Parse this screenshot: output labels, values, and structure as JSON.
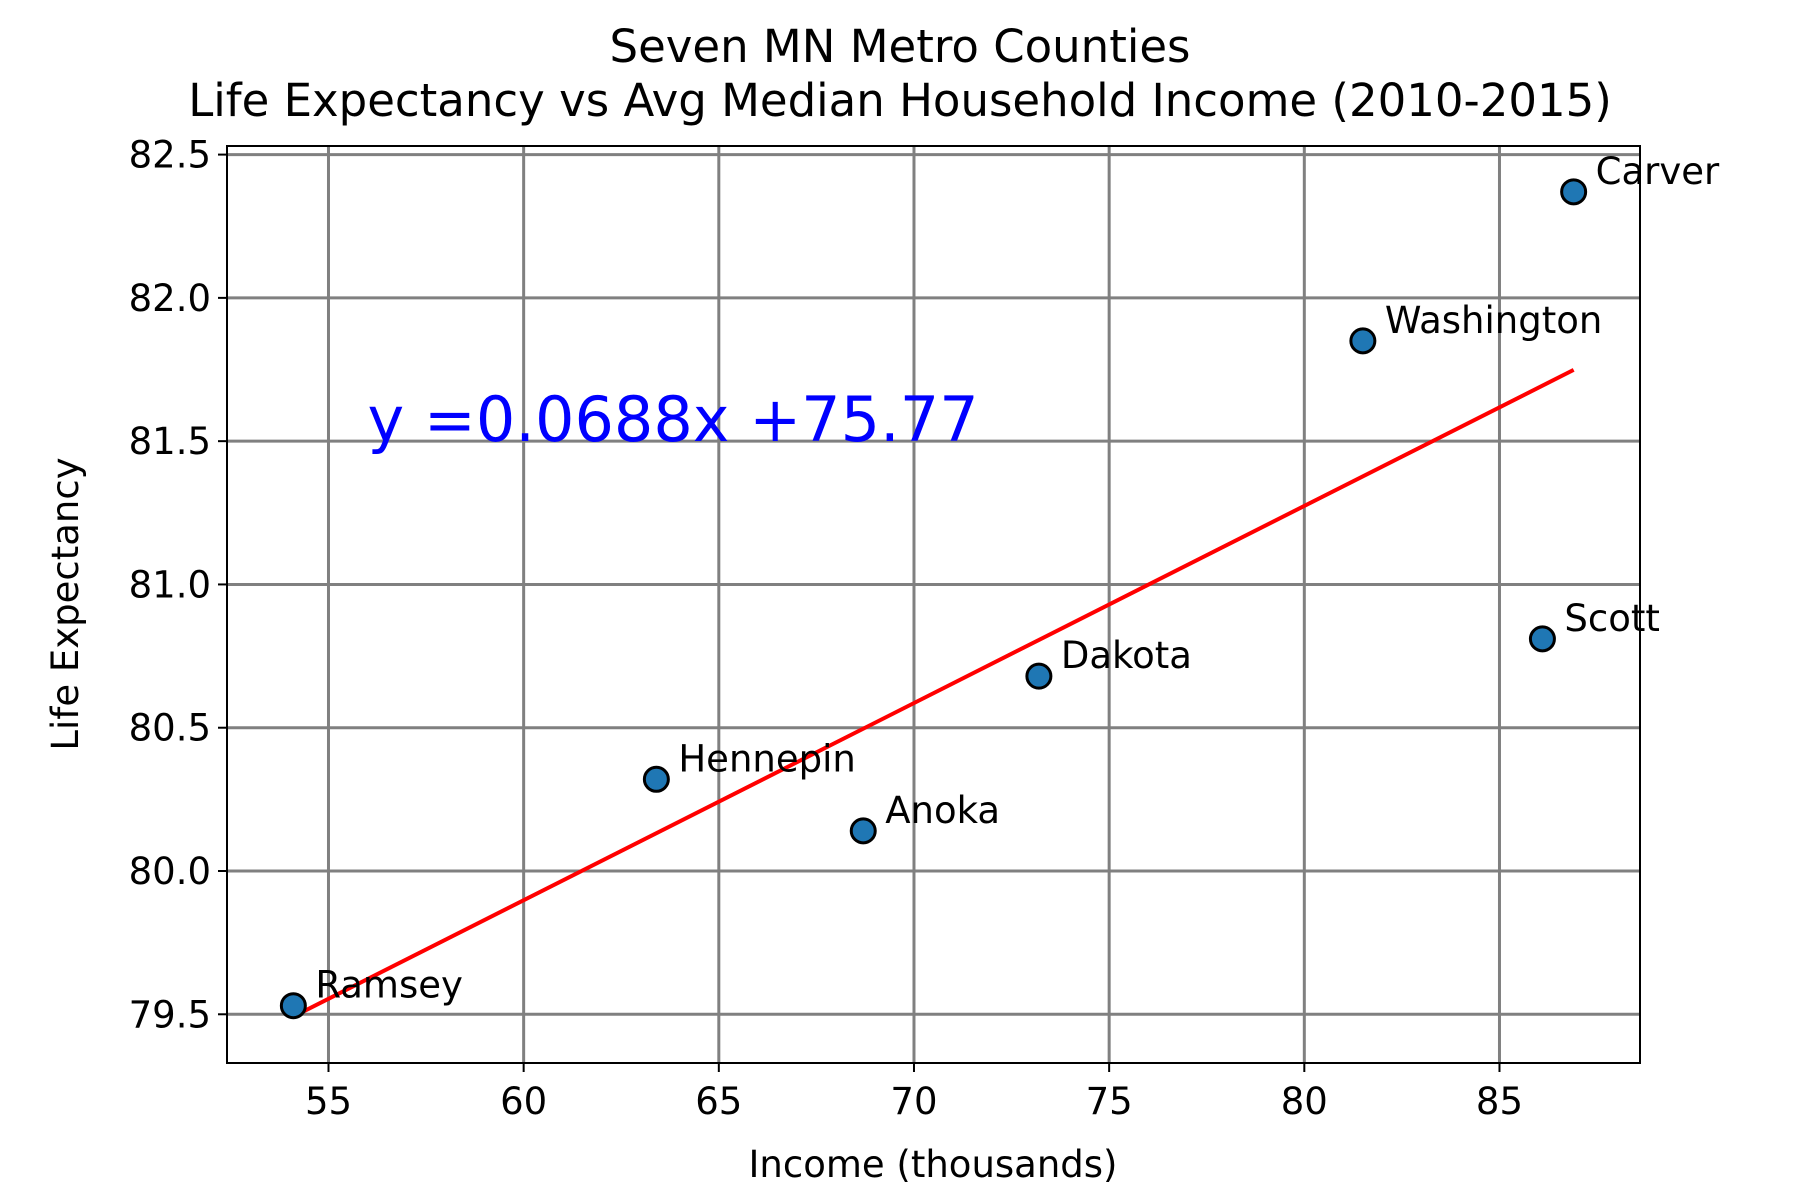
{
  "chart_data": {
    "type": "scatter",
    "title": [
      "Seven MN Metro Counties",
      "Life Expectancy vs Avg Median Household Income (2010-2015)"
    ],
    "xlabel": "Income (thousands)",
    "ylabel": "Life Expectancy",
    "xlim": [
      52.4,
      88.6
    ],
    "ylim": [
      79.33,
      82.53
    ],
    "xticks": [
      55,
      60,
      65,
      70,
      75,
      80,
      85
    ],
    "xtick_labels": [
      "55",
      "60",
      "65",
      "70",
      "75",
      "80",
      "85"
    ],
    "yticks": [
      79.5,
      80.0,
      80.5,
      81.0,
      81.5,
      82.0,
      82.5
    ],
    "ytick_labels": [
      "79.5",
      "80.0",
      "80.5",
      "81.0",
      "81.5",
      "82.0",
      "82.5"
    ],
    "grid": true,
    "points": [
      {
        "label": "Ramsey",
        "x": 54.1,
        "y": 79.53
      },
      {
        "label": "Hennepin",
        "x": 63.4,
        "y": 80.32
      },
      {
        "label": "Anoka",
        "x": 68.7,
        "y": 80.14
      },
      {
        "label": "Dakota",
        "x": 73.2,
        "y": 80.68
      },
      {
        "label": "Washington",
        "x": 81.5,
        "y": 81.85
      },
      {
        "label": "Scott",
        "x": 86.1,
        "y": 80.81
      },
      {
        "label": "Carver",
        "x": 86.9,
        "y": 82.37
      }
    ],
    "regression": {
      "slope": 0.0688,
      "intercept": 75.77,
      "x_range": [
        54.1,
        86.9
      ],
      "equation_text": "y =0.0688x +75.77",
      "equation_anchor": [
        56,
        81.5
      ]
    },
    "colors": {
      "marker_fill": "#1f77b4",
      "marker_edge": "#000000",
      "regression_line": "#ff0000",
      "equation": "#0000ff",
      "grid": "#808080"
    }
  }
}
